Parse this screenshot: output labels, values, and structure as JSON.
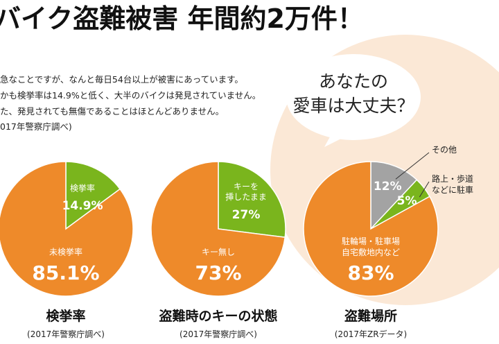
{
  "title": "バイク盗難被害 年間約2万件！",
  "paragraphs": [
    "急なことですが、なんと毎日54台以上が被害にあっています。",
    "かも検挙率は14.9%と低く、大半のバイクは発見されていません。",
    "た、発見されても無傷であることはほとんどありません。",
    "017年警察庁調べ)"
  ],
  "bubble": "あなたの\n愛車は大丈夫？",
  "chart_data": [
    {
      "type": "pie",
      "title": "検挙率",
      "subtitle": "(2017年警察庁調べ)",
      "categories": [
        "検挙率",
        "未検挙率"
      ],
      "values": [
        14.9,
        85.1
      ],
      "value_labels": [
        "14.9%",
        "85.1%"
      ],
      "colors": [
        "#7ab51d",
        "#ee8a2a"
      ]
    },
    {
      "type": "pie",
      "title": "盗難時のキーの状態",
      "subtitle": "(2017年警察庁調べ)",
      "categories": [
        "キーを\n挿したまま",
        "キー無し"
      ],
      "values": [
        27,
        73
      ],
      "value_labels": [
        "27%",
        "73%"
      ],
      "colors": [
        "#7ab51d",
        "#ee8a2a"
      ]
    },
    {
      "type": "pie",
      "title": "盗難場所",
      "subtitle": "(2017年ZRデータ)",
      "categories": [
        "その他",
        "路上・歩道\nなどに駐車",
        "駐輪場・駐車場\n自宅敷地内など"
      ],
      "values": [
        12,
        5,
        83
      ],
      "value_labels": [
        "12%",
        "5%",
        "83%"
      ],
      "colors": [
        "#a3a3a3",
        "#7ab51d",
        "#ee8a2a"
      ]
    }
  ]
}
